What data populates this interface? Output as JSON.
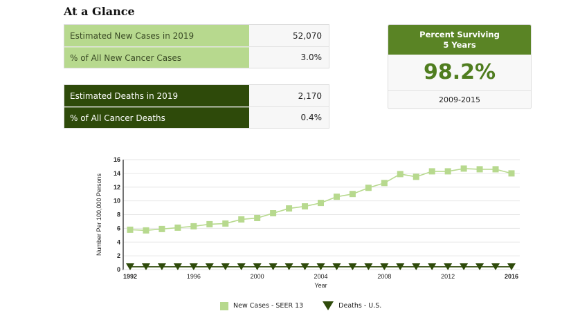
{
  "page": {
    "title": "At a Glance"
  },
  "new_cases": {
    "rows": [
      {
        "label": "Estimated New Cases in 2019",
        "value": "52,070"
      },
      {
        "label": "% of All New Cancer Cases",
        "value": "3.0%"
      }
    ]
  },
  "deaths": {
    "rows": [
      {
        "label": "Estimated Deaths in 2019",
        "value": "2,170"
      },
      {
        "label": "% of All Cancer Deaths",
        "value": "0.4%"
      }
    ]
  },
  "survival": {
    "heading_line1": "Percent Surviving",
    "heading_line2": "5 Years",
    "value": "98.2%",
    "period": "2009-2015"
  },
  "colors": {
    "new_cases": "#b7d98e",
    "deaths": "#2e4a0a",
    "survival_header": "#5a8425",
    "survival_value": "#4f7d1f"
  },
  "chart_data": {
    "type": "line",
    "title": "",
    "xlabel": "Year",
    "ylabel": "Number Per 100,000 Persons",
    "ylim": [
      0,
      16
    ],
    "xlim": [
      1992,
      2016
    ],
    "y_ticks": [
      "0",
      "2",
      "4",
      "6",
      "8",
      "10",
      "12",
      "14",
      "16"
    ],
    "x_ticks": [
      {
        "label": "1992",
        "value": 1992,
        "bold": true
      },
      {
        "label": "1996",
        "value": 1996,
        "bold": false
      },
      {
        "label": "2000",
        "value": 2000,
        "bold": false
      },
      {
        "label": "2004",
        "value": 2004,
        "bold": false
      },
      {
        "label": "2008",
        "value": 2008,
        "bold": false
      },
      {
        "label": "2012",
        "value": 2012,
        "bold": false
      },
      {
        "label": "2016",
        "value": 2016,
        "bold": true
      }
    ],
    "grid": true,
    "legend_position": "bottom",
    "x": [
      1992,
      1993,
      1994,
      1995,
      1996,
      1997,
      1998,
      1999,
      2000,
      2001,
      2002,
      2003,
      2004,
      2005,
      2006,
      2007,
      2008,
      2009,
      2010,
      2011,
      2012,
      2013,
      2014,
      2015,
      2016
    ],
    "series": [
      {
        "name": "New Cases - SEER 13",
        "marker": "square",
        "color": "#b7d98e",
        "values": [
          5.8,
          5.7,
          5.9,
          6.1,
          6.3,
          6.6,
          6.7,
          7.3,
          7.5,
          8.2,
          8.9,
          9.2,
          9.7,
          10.6,
          11.0,
          11.9,
          12.6,
          13.9,
          13.5,
          14.3,
          14.3,
          14.7,
          14.6,
          14.6,
          14.0
        ]
      },
      {
        "name": "Deaths - U.S.",
        "marker": "triangle-down",
        "color": "#2e4a0a",
        "values": [
          0.4,
          0.4,
          0.4,
          0.4,
          0.4,
          0.4,
          0.4,
          0.4,
          0.4,
          0.4,
          0.4,
          0.4,
          0.4,
          0.4,
          0.4,
          0.4,
          0.4,
          0.4,
          0.4,
          0.4,
          0.4,
          0.4,
          0.4,
          0.4,
          0.4
        ]
      }
    ]
  }
}
